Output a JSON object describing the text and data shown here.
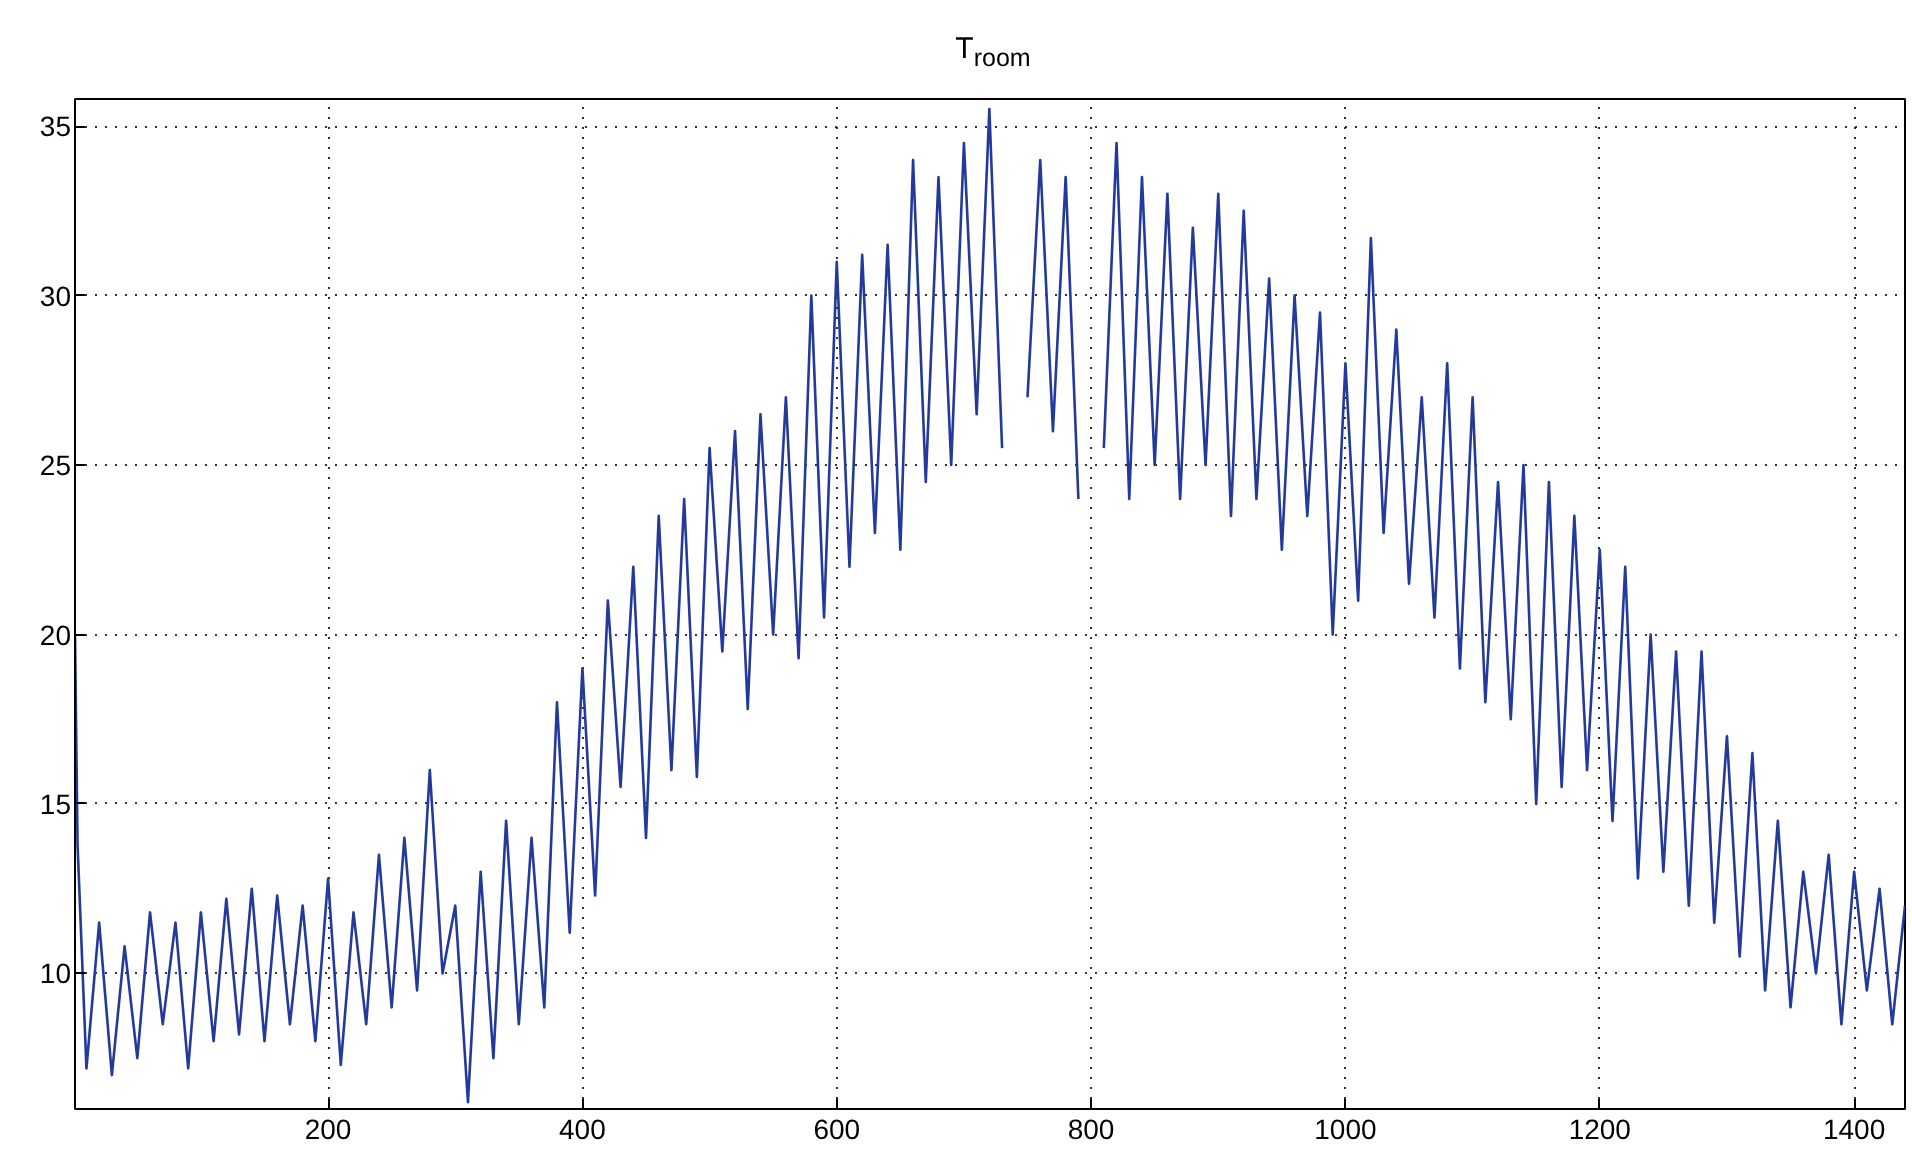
{
  "chart_data": {
    "type": "line",
    "title": "T$_{room}$",
    "x": [
      1,
      3,
      10,
      20,
      30,
      40,
      50,
      60,
      70,
      80,
      90,
      100,
      110,
      120,
      130,
      140,
      150,
      160,
      170,
      180,
      190,
      200,
      210,
      220,
      230,
      240,
      250,
      260,
      270,
      280,
      290,
      300,
      310,
      320,
      330,
      340,
      350,
      360,
      370,
      380,
      390,
      400,
      410,
      420,
      430,
      440,
      450,
      460,
      470,
      480,
      490,
      500,
      510,
      520,
      530,
      540,
      550,
      560,
      570,
      580,
      590,
      600,
      610,
      620,
      630,
      640,
      650,
      660,
      670,
      680,
      690,
      700,
      710,
      720,
      730,
      740,
      750,
      760,
      770,
      780,
      790,
      800,
      810,
      820,
      830,
      840,
      850,
      860,
      870,
      880,
      890,
      900,
      910,
      920,
      930,
      940,
      950,
      960,
      970,
      980,
      990,
      1000,
      1010,
      1020,
      1030,
      1040,
      1050,
      1060,
      1070,
      1080,
      1090,
      1100,
      1110,
      1120,
      1130,
      1140,
      1150,
      1160,
      1170,
      1180,
      1190,
      1200,
      1210,
      1220,
      1230,
      1240,
      1250,
      1260,
      1270,
      1280,
      1290,
      1300,
      1310,
      1320,
      1330,
      1340,
      1350,
      1360,
      1370,
      1380,
      1390,
      1400,
      1410,
      1420,
      1430,
      1440
    ],
    "series": [
      {
        "color": "#23399b",
        "values": [
          20,
          13.8,
          7.2,
          11.5,
          7.0,
          10.8,
          7.5,
          11.8,
          8.5,
          11.5,
          7.2,
          11.8,
          8.0,
          12.2,
          8.2,
          12.5,
          8.0,
          12.3,
          8.5,
          12.0,
          8.0,
          12.8,
          7.3,
          11.8,
          8.5,
          13.5,
          9.0,
          14.0,
          9.5,
          16.0,
          10.0,
          12.0,
          6.2,
          13.0,
          7.5,
          14.5,
          8.5,
          14.0,
          9.0,
          18.0,
          11.2,
          19.0,
          12.3,
          21.0,
          15.5,
          22.0,
          14.0,
          23.5,
          16.0,
          24.0,
          15.8,
          25.5,
          19.5,
          26.0,
          17.8,
          26.5,
          20.0,
          27.0,
          19.3,
          30.0,
          20.5,
          31.0,
          22.0,
          31.2,
          23.0,
          31.5,
          22.5,
          34.0,
          24.5,
          33.5,
          25.0,
          34.5,
          26.5,
          35.5,
          25.5,
          null,
          27.0,
          34.0,
          26.0,
          33.5,
          24.0,
          null,
          25.5,
          34.5,
          24.0,
          33.5,
          25.0,
          33.0,
          24.0,
          32.0,
          25.0,
          33.0,
          23.5,
          32.5,
          24.0,
          30.5,
          22.5,
          30.0,
          23.5,
          29.5,
          20.0,
          28.0,
          21.0,
          31.7,
          23.0,
          29.0,
          21.5,
          27.0,
          20.5,
          28.0,
          19.0,
          27.0,
          18.0,
          24.5,
          17.5,
          25.0,
          15.0,
          24.5,
          15.5,
          23.5,
          16.0,
          22.5,
          14.5,
          22.0,
          12.8,
          20.0,
          13.0,
          19.5,
          12.0,
          19.5,
          11.5,
          17.0,
          10.5,
          16.5,
          9.5,
          14.5,
          9.0,
          13.0,
          10.0,
          13.5,
          8.5,
          13.0,
          9.5,
          12.5,
          8.5,
          12.0
        ]
      }
    ],
    "xlim": [
      1,
      1440
    ],
    "ylim": [
      6,
      35.8
    ],
    "xticks": [
      200,
      400,
      600,
      800,
      1000,
      1200,
      1400
    ],
    "yticks": [
      10,
      15,
      20,
      25,
      30,
      35
    ],
    "grid": true,
    "marker": "none",
    "line_style": "solid"
  }
}
